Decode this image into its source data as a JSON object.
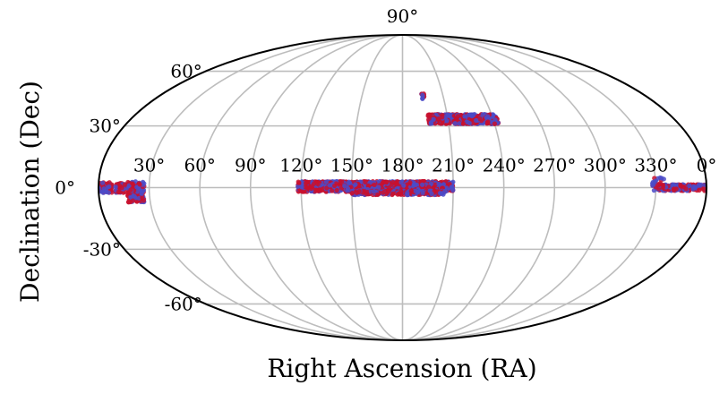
{
  "chart_data": {
    "type": "scatter",
    "projection": "mollweide",
    "title": "",
    "xlabel": "Right Ascension (RA)",
    "ylabel": "Declination (Dec)",
    "x_ticks": [
      "30°",
      "60°",
      "90°",
      "120°",
      "150°",
      "180°",
      "210°",
      "240°",
      "270°",
      "300°",
      "330°",
      "0°"
    ],
    "y_ticks": [
      "90°",
      "60°",
      "30°",
      "0°",
      "-30°",
      "-60°"
    ],
    "xlim": [
      0,
      360
    ],
    "ylim": [
      -90,
      90
    ],
    "grid": true,
    "x_direction": "increasing-right",
    "series": [
      {
        "color_a": "#c8102e",
        "color_b": "#4b4bc8",
        "regions": [
          {
            "ra_min": 0,
            "ra_max": 8,
            "dec_min": -2.5,
            "dec_max": 2.5,
            "count": 80
          },
          {
            "ra_min": 10,
            "ra_max": 16,
            "dec_min": -2.5,
            "dec_max": 2.5,
            "count": 60
          },
          {
            "ra_min": 17,
            "ra_max": 27,
            "dec_min": -7,
            "dec_max": 3,
            "count": 140
          },
          {
            "ra_min": 118,
            "ra_max": 210,
            "dec_min": -2,
            "dec_max": 3,
            "count": 1300
          },
          {
            "ra_min": 150,
            "ra_max": 205,
            "dec_min": -3.5,
            "dec_max": -1.5,
            "count": 250
          },
          {
            "ra_min": 197,
            "ra_max": 243,
            "dec_min": 31,
            "dec_max": 36,
            "count": 520
          },
          {
            "ra_min": 194,
            "ra_max": 196,
            "dec_min": 44,
            "dec_max": 47,
            "count": 10
          },
          {
            "ra_min": 328,
            "ra_max": 360,
            "dec_min": -1.5,
            "dec_max": 1.5,
            "count": 220
          },
          {
            "ra_min": 328,
            "ra_max": 335,
            "dec_min": 0,
            "dec_max": 5,
            "count": 20
          }
        ]
      }
    ]
  }
}
